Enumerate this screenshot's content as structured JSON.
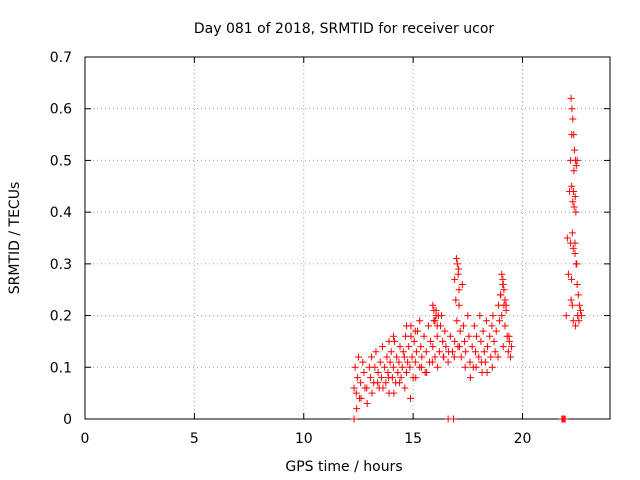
{
  "chart_data": {
    "type": "scatter",
    "title": "Day 081 of 2018, SRMTID for receiver ucor",
    "xlabel": "GPS time / hours",
    "ylabel": "SRMTID / TECUs",
    "xlim": [
      0,
      24
    ],
    "ylim": [
      0,
      0.7
    ],
    "x_ticks": [
      0,
      5,
      10,
      15,
      20
    ],
    "x_tick_labels": [
      "0",
      "5",
      "10",
      "15",
      "20"
    ],
    "y_ticks": [
      0,
      0.1,
      0.2,
      0.3,
      0.4,
      0.5,
      0.6,
      0.7
    ],
    "y_tick_labels": [
      "0",
      "0.1",
      "0.2",
      "0.3",
      "0.4",
      "0.5",
      "0.6",
      "0.7"
    ],
    "grid": true,
    "series": [
      {
        "name": "SRMTID",
        "color": "#ff0000",
        "marker": "plus",
        "x": [
          12.3,
          12.35,
          12.4,
          12.45,
          12.5,
          12.55,
          12.6,
          12.7,
          12.75,
          12.8,
          12.9,
          13.0,
          13.05,
          13.1,
          13.2,
          13.25,
          13.3,
          13.4,
          13.45,
          13.5,
          13.55,
          13.6,
          13.7,
          13.75,
          13.8,
          13.85,
          13.9,
          13.95,
          14.0,
          14.05,
          14.1,
          14.15,
          14.2,
          14.25,
          14.3,
          14.35,
          14.4,
          14.45,
          14.5,
          14.55,
          14.6,
          14.65,
          14.7,
          14.75,
          14.8,
          14.85,
          14.9,
          14.95,
          15.0,
          15.05,
          15.1,
          15.15,
          15.2,
          15.3,
          15.35,
          15.4,
          15.5,
          15.55,
          15.6,
          15.7,
          15.75,
          15.8,
          15.9,
          15.95,
          16.0,
          16.05,
          16.1,
          16.2,
          16.25,
          16.3,
          16.35,
          16.4,
          16.45,
          16.5,
          16.6,
          16.7,
          16.8,
          16.9,
          17.0,
          17.05,
          17.1,
          17.15,
          17.2,
          17.25,
          17.3,
          17.35,
          17.4,
          17.5,
          17.55,
          17.6,
          17.7,
          17.75,
          17.8,
          17.85,
          17.9,
          18.0,
          18.05,
          18.1,
          18.15,
          18.2,
          18.25,
          18.3,
          18.35,
          18.4,
          18.5,
          18.55,
          18.6,
          18.65,
          18.7,
          18.75,
          18.8,
          18.9,
          18.95,
          19.0,
          19.05,
          19.1,
          19.15,
          19.2,
          19.25,
          19.3,
          19.35,
          19.4,
          19.45,
          19.5,
          22.0,
          22.05,
          22.1,
          22.15,
          22.2,
          22.25,
          22.3,
          22.35,
          22.4,
          22.45,
          22.5,
          22.55,
          22.6,
          22.65,
          22.7,
          12.42,
          12.62,
          12.88,
          13.12,
          13.38,
          13.62,
          13.88,
          14.12,
          14.38,
          14.62,
          14.88,
          15.12,
          15.38,
          15.62,
          15.88,
          16.12,
          16.38,
          16.62,
          16.88,
          17.12,
          17.38,
          17.62,
          17.88,
          18.12,
          18.38,
          18.62,
          18.88,
          19.12,
          19.38,
          22.22,
          22.28,
          22.32,
          22.42,
          22.52,
          22.58,
          22.22,
          22.26,
          22.3,
          22.34,
          22.38,
          22.42,
          22.46,
          22.5,
          22.25,
          22.33,
          22.41,
          22.36,
          22.44,
          22.28,
          22.2,
          22.32,
          22.4,
          22.48,
          22.24,
          16.98,
          17.02,
          17.06,
          16.9,
          17.1,
          16.95,
          17.08,
          19.05,
          19.1,
          19.15,
          19.2,
          19.25,
          19.0,
          19.12,
          15.9,
          15.95,
          16.0,
          16.05,
          16.1,
          16.15,
          14.7,
          14.9,
          14.1,
          13.9,
          15.3,
          15.1,
          12.3,
          16.6,
          16.85,
          21.8,
          21.85,
          21.9,
          21.95
        ],
        "y": [
          0.06,
          0.1,
          0.05,
          0.08,
          0.12,
          0.04,
          0.07,
          0.11,
          0.09,
          0.06,
          0.03,
          0.1,
          0.08,
          0.12,
          0.07,
          0.1,
          0.13,
          0.09,
          0.06,
          0.11,
          0.08,
          0.14,
          0.1,
          0.07,
          0.12,
          0.09,
          0.05,
          0.11,
          0.13,
          0.08,
          0.1,
          0.15,
          0.07,
          0.12,
          0.09,
          0.11,
          0.14,
          0.08,
          0.1,
          0.13,
          0.12,
          0.16,
          0.09,
          0.11,
          0.14,
          0.1,
          0.18,
          0.12,
          0.08,
          0.15,
          0.11,
          0.13,
          0.17,
          0.1,
          0.14,
          0.12,
          0.16,
          0.09,
          0.13,
          0.18,
          0.11,
          0.15,
          0.14,
          0.19,
          0.12,
          0.21,
          0.16,
          0.13,
          0.18,
          0.2,
          0.15,
          0.12,
          0.17,
          0.14,
          0.11,
          0.16,
          0.13,
          0.15,
          0.19,
          0.14,
          0.22,
          0.17,
          0.12,
          0.26,
          0.18,
          0.15,
          0.13,
          0.2,
          0.16,
          0.11,
          0.14,
          0.1,
          0.18,
          0.13,
          0.16,
          0.12,
          0.2,
          0.15,
          0.09,
          0.17,
          0.13,
          0.11,
          0.19,
          0.14,
          0.16,
          0.12,
          0.18,
          0.2,
          0.15,
          0.13,
          0.17,
          0.22,
          0.19,
          0.24,
          0.2,
          0.26,
          0.22,
          0.18,
          0.21,
          0.16,
          0.13,
          0.15,
          0.12,
          0.14,
          0.2,
          0.35,
          0.28,
          0.44,
          0.5,
          0.55,
          0.42,
          0.48,
          0.34,
          0.3,
          0.26,
          0.24,
          0.22,
          0.21,
          0.2,
          0.02,
          0.04,
          0.06,
          0.05,
          0.07,
          0.06,
          0.08,
          0.05,
          0.07,
          0.06,
          0.04,
          0.08,
          0.1,
          0.09,
          0.11,
          0.1,
          0.12,
          0.13,
          0.12,
          0.14,
          0.1,
          0.08,
          0.1,
          0.11,
          0.09,
          0.1,
          0.12,
          0.14,
          0.16,
          0.23,
          0.22,
          0.19,
          0.18,
          0.2,
          0.19,
          0.62,
          0.6,
          0.58,
          0.55,
          0.52,
          0.5,
          0.49,
          0.5,
          0.45,
          0.44,
          0.43,
          0.41,
          0.4,
          0.36,
          0.34,
          0.33,
          0.32,
          0.3,
          0.27,
          0.31,
          0.3,
          0.28,
          0.27,
          0.25,
          0.23,
          0.29,
          0.28,
          0.27,
          0.25,
          0.23,
          0.22,
          0.24,
          0.26,
          0.22,
          0.21,
          0.19,
          0.2,
          0.18,
          0.2,
          0.18,
          0.16,
          0.16,
          0.15,
          0.19,
          0.17,
          0.0,
          0.0,
          0.0,
          0.0,
          0.0,
          0.0,
          0.0
        ]
      }
    ]
  }
}
